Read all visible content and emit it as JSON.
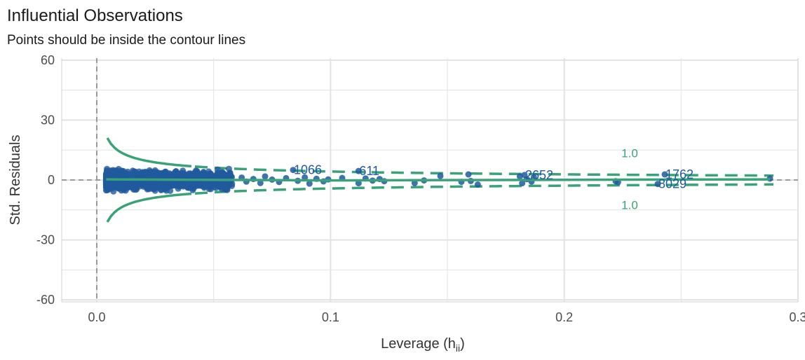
{
  "chart_data": {
    "type": "scatter",
    "title": "Influential Observations",
    "subtitle": "Points should be inside the contour lines",
    "xlabel_main": "Leverage (h",
    "xlabel_sub": "ii",
    "xlabel_close": ")",
    "ylabel": "Std. Residuals",
    "xlim": [
      -0.015,
      0.3
    ],
    "ylim": [
      -61,
      61
    ],
    "x_ticks": [
      {
        "value": 0.0,
        "label": "0.0"
      },
      {
        "value": 0.1,
        "label": "0.1"
      },
      {
        "value": 0.2,
        "label": "0.2"
      },
      {
        "value": 0.3,
        "label": "0.3"
      }
    ],
    "y_ticks": [
      {
        "value": 60,
        "label": "60"
      },
      {
        "value": 30,
        "label": "30"
      },
      {
        "value": 0,
        "label": "0"
      },
      {
        "value": -30,
        "label": "-30"
      },
      {
        "value": -60,
        "label": "-60"
      }
    ],
    "cooks_distance_level": 1.0,
    "contour_labels": [
      {
        "text": "1.0",
        "x": 0.228,
        "y": 13.5
      },
      {
        "text": "1.0",
        "x": 0.228,
        "y": -12.5
      }
    ],
    "labeled_points": [
      {
        "label": "1066",
        "x": 0.084,
        "y": 5.0
      },
      {
        "label": "611",
        "x": 0.112,
        "y": 4.5
      },
      {
        "label": "2652",
        "x": 0.183,
        "y": 2.5
      },
      {
        "label": "1762",
        "x": 0.243,
        "y": 2.8
      },
      {
        "label": "8029",
        "x": 0.24,
        "y": -2.0
      }
    ],
    "sparse_points": [
      {
        "x": 0.062,
        "y": 1.2
      },
      {
        "x": 0.064,
        "y": -0.8
      },
      {
        "x": 0.067,
        "y": 0.5
      },
      {
        "x": 0.07,
        "y": -1.5
      },
      {
        "x": 0.072,
        "y": 1.8
      },
      {
        "x": 0.075,
        "y": 0.2
      },
      {
        "x": 0.078,
        "y": -1.0
      },
      {
        "x": 0.081,
        "y": 0.9
      },
      {
        "x": 0.086,
        "y": -0.4
      },
      {
        "x": 0.089,
        "y": 1.3
      },
      {
        "x": 0.091,
        "y": -1.8
      },
      {
        "x": 0.094,
        "y": 0.6
      },
      {
        "x": 0.097,
        "y": -0.7
      },
      {
        "x": 0.099,
        "y": 0.3
      },
      {
        "x": 0.105,
        "y": 1.0
      },
      {
        "x": 0.112,
        "y": -1.6
      },
      {
        "x": 0.115,
        "y": 0.8
      },
      {
        "x": 0.118,
        "y": -0.3
      },
      {
        "x": 0.121,
        "y": 0.5
      },
      {
        "x": 0.123,
        "y": -0.6
      },
      {
        "x": 0.136,
        "y": -1.5
      },
      {
        "x": 0.14,
        "y": -0.2
      },
      {
        "x": 0.147,
        "y": 2.0
      },
      {
        "x": 0.156,
        "y": -0.9
      },
      {
        "x": 0.159,
        "y": 2.8
      },
      {
        "x": 0.16,
        "y": -0.5
      },
      {
        "x": 0.163,
        "y": -2.3
      },
      {
        "x": 0.181,
        "y": 1.8
      },
      {
        "x": 0.182,
        "y": -1.6
      },
      {
        "x": 0.184,
        "y": 0.4
      },
      {
        "x": 0.186,
        "y": -0.8
      },
      {
        "x": 0.187,
        "y": 1.3
      },
      {
        "x": 0.222,
        "y": -0.6
      },
      {
        "x": 0.223,
        "y": -1.1
      },
      {
        "x": 0.288,
        "y": 0.7
      }
    ],
    "dense_cluster": {
      "x_range": [
        0.004,
        0.058
      ],
      "y_spread": 3.5
    },
    "colors": {
      "points": "#1f5a9e",
      "contour": "#3aa278",
      "grid": "#e3e3e3",
      "reference_line": "#9a9a9a",
      "label_text": "#1f5a9e"
    }
  }
}
